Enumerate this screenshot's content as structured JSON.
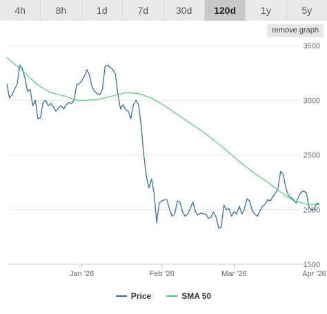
{
  "tabs": [
    {
      "label": "4h",
      "active": false
    },
    {
      "label": "8h",
      "active": false
    },
    {
      "label": "1d",
      "active": false
    },
    {
      "label": "7d",
      "active": false
    },
    {
      "label": "30d",
      "active": false
    },
    {
      "label": "120d",
      "active": true
    },
    {
      "label": "1y",
      "active": false
    },
    {
      "label": "5y",
      "active": false
    }
  ],
  "remove_graph_label": "remove graph",
  "colors": {
    "price": "#2e6fb5",
    "sma": "#3ecf6a",
    "grid": "#e6e6e6",
    "axis_text": "#666666"
  },
  "chart_data": {
    "type": "line",
    "title": "",
    "xlabel": "",
    "ylabel": "",
    "ylim": [
      1500,
      3500
    ],
    "yticks": [
      "1500",
      "2000",
      "2500",
      "3000",
      "3500"
    ],
    "xlim": [
      "2025-12-03",
      "2026-04-03"
    ],
    "xticks": [
      {
        "date": "2026-01-01",
        "label": "Jan '26"
      },
      {
        "date": "2026-02-01",
        "label": "Feb '26"
      },
      {
        "date": "2026-03-01",
        "label": "Mar '26"
      },
      {
        "date": "2026-04-01",
        "label": "Apr '26"
      }
    ],
    "grid": true,
    "legend_position": "bottom-center",
    "series": [
      {
        "name": "Price",
        "points": [
          [
            "2025-12-03",
            3150
          ],
          [
            "2025-12-04",
            3020
          ],
          [
            "2025-12-05",
            3050
          ],
          [
            "2025-12-06",
            3100
          ],
          [
            "2025-12-07",
            3150
          ],
          [
            "2025-12-08",
            3320
          ],
          [
            "2025-12-09",
            3290
          ],
          [
            "2025-12-10",
            3200
          ],
          [
            "2025-12-11",
            3080
          ],
          [
            "2025-12-12",
            3100
          ],
          [
            "2025-12-13",
            2950
          ],
          [
            "2025-12-14",
            3000
          ],
          [
            "2025-12-15",
            2830
          ],
          [
            "2025-12-16",
            2840
          ],
          [
            "2025-12-17",
            2980
          ],
          [
            "2025-12-18",
            3000
          ],
          [
            "2025-12-19",
            2950
          ],
          [
            "2025-12-20",
            2970
          ],
          [
            "2025-12-21",
            2940
          ],
          [
            "2025-12-22",
            2900
          ],
          [
            "2025-12-23",
            2930
          ],
          [
            "2025-12-24",
            2950
          ],
          [
            "2025-12-25",
            2920
          ],
          [
            "2025-12-26",
            2960
          ],
          [
            "2025-12-27",
            2980
          ],
          [
            "2025-12-28",
            2970
          ],
          [
            "2025-12-29",
            3000
          ],
          [
            "2025-12-30",
            3140
          ],
          [
            "2025-12-31",
            3150
          ],
          [
            "2026-01-01",
            3180
          ],
          [
            "2026-01-02",
            3220
          ],
          [
            "2026-01-03",
            3280
          ],
          [
            "2026-01-04",
            3230
          ],
          [
            "2026-01-05",
            3120
          ],
          [
            "2026-01-06",
            3080
          ],
          [
            "2026-01-07",
            3060
          ],
          [
            "2026-01-08",
            3050
          ],
          [
            "2026-01-09",
            3100
          ],
          [
            "2026-01-10",
            3310
          ],
          [
            "2026-01-11",
            3320
          ],
          [
            "2026-01-12",
            3300
          ],
          [
            "2026-01-13",
            3280
          ],
          [
            "2026-01-14",
            3240
          ],
          [
            "2026-01-15",
            3050
          ],
          [
            "2026-01-16",
            2920
          ],
          [
            "2026-01-17",
            2960
          ],
          [
            "2026-01-18",
            2910
          ],
          [
            "2026-01-19",
            2900
          ],
          [
            "2026-01-20",
            2830
          ],
          [
            "2026-01-21",
            2960
          ],
          [
            "2026-01-22",
            3000
          ],
          [
            "2026-01-23",
            2960
          ],
          [
            "2026-01-24",
            2760
          ],
          [
            "2026-01-25",
            2500
          ],
          [
            "2026-01-26",
            2300
          ],
          [
            "2026-01-27",
            2200
          ],
          [
            "2026-01-28",
            2280
          ],
          [
            "2026-01-29",
            2150
          ],
          [
            "2026-01-30",
            1880
          ],
          [
            "2026-01-31",
            2060
          ],
          [
            "2026-02-01",
            2080
          ],
          [
            "2026-02-02",
            2090
          ],
          [
            "2026-02-03",
            2090
          ],
          [
            "2026-02-04",
            2000
          ],
          [
            "2026-02-05",
            1940
          ],
          [
            "2026-02-06",
            1960
          ],
          [
            "2026-02-07",
            2080
          ],
          [
            "2026-02-08",
            2070
          ],
          [
            "2026-02-09",
            1980
          ],
          [
            "2026-02-10",
            1940
          ],
          [
            "2026-02-11",
            1960
          ],
          [
            "2026-02-12",
            2010
          ],
          [
            "2026-02-13",
            2070
          ],
          [
            "2026-02-14",
            1980
          ],
          [
            "2026-02-15",
            1950
          ],
          [
            "2026-02-16",
            1970
          ],
          [
            "2026-02-17",
            1960
          ],
          [
            "2026-02-18",
            1960
          ],
          [
            "2026-02-19",
            1920
          ],
          [
            "2026-02-20",
            1930
          ],
          [
            "2026-02-21",
            1980
          ],
          [
            "2026-02-22",
            1930
          ],
          [
            "2026-02-23",
            1830
          ],
          [
            "2026-02-24",
            1840
          ],
          [
            "2026-02-25",
            2040
          ],
          [
            "2026-02-26",
            2000
          ],
          [
            "2026-02-27",
            2010
          ],
          [
            "2026-02-28",
            1940
          ],
          [
            "2026-03-01",
            1980
          ],
          [
            "2026-03-02",
            1960
          ],
          [
            "2026-03-03",
            2030
          ],
          [
            "2026-03-04",
            1960
          ],
          [
            "2026-03-05",
            2010
          ],
          [
            "2026-03-06",
            2100
          ],
          [
            "2026-03-07",
            2080
          ],
          [
            "2026-03-08",
            1990
          ],
          [
            "2026-03-09",
            1960
          ],
          [
            "2026-03-10",
            1940
          ],
          [
            "2026-03-11",
            1990
          ],
          [
            "2026-03-12",
            2030
          ],
          [
            "2026-03-13",
            2050
          ],
          [
            "2026-03-14",
            2090
          ],
          [
            "2026-03-15",
            2080
          ],
          [
            "2026-03-16",
            2120
          ],
          [
            "2026-03-17",
            2150
          ],
          [
            "2026-03-18",
            2200
          ],
          [
            "2026-03-19",
            2350
          ],
          [
            "2026-03-20",
            2320
          ],
          [
            "2026-03-21",
            2200
          ],
          [
            "2026-03-22",
            2130
          ],
          [
            "2026-03-23",
            2110
          ],
          [
            "2026-03-24",
            2090
          ],
          [
            "2026-03-25",
            2060
          ],
          [
            "2026-03-26",
            2120
          ],
          [
            "2026-03-27",
            2160
          ],
          [
            "2026-03-28",
            2170
          ],
          [
            "2026-03-29",
            2150
          ],
          [
            "2026-03-30",
            2020
          ],
          [
            "2026-03-31",
            2000
          ],
          [
            "2026-04-01",
            2000
          ],
          [
            "2026-04-02",
            2060
          ],
          [
            "2026-04-03",
            2050
          ]
        ]
      },
      {
        "name": "SMA 50",
        "points": [
          [
            "2025-12-03",
            3390
          ],
          [
            "2025-12-06",
            3330
          ],
          [
            "2025-12-10",
            3250
          ],
          [
            "2025-12-15",
            3140
          ],
          [
            "2025-12-20",
            3070
          ],
          [
            "2025-12-25",
            3040
          ],
          [
            "2025-12-30",
            3000
          ],
          [
            "2026-01-03",
            3000
          ],
          [
            "2026-01-08",
            3010
          ],
          [
            "2026-01-13",
            3040
          ],
          [
            "2026-01-18",
            3070
          ],
          [
            "2026-01-23",
            3060
          ],
          [
            "2026-01-28",
            3020
          ],
          [
            "2026-02-02",
            2950
          ],
          [
            "2026-02-07",
            2870
          ],
          [
            "2026-02-12",
            2790
          ],
          [
            "2026-02-17",
            2710
          ],
          [
            "2026-02-22",
            2620
          ],
          [
            "2026-02-27",
            2520
          ],
          [
            "2026-03-04",
            2420
          ],
          [
            "2026-03-09",
            2330
          ],
          [
            "2026-03-14",
            2250
          ],
          [
            "2026-03-19",
            2160
          ],
          [
            "2026-03-24",
            2080
          ],
          [
            "2026-03-29",
            2050
          ],
          [
            "2026-04-03",
            2045
          ]
        ]
      }
    ]
  }
}
